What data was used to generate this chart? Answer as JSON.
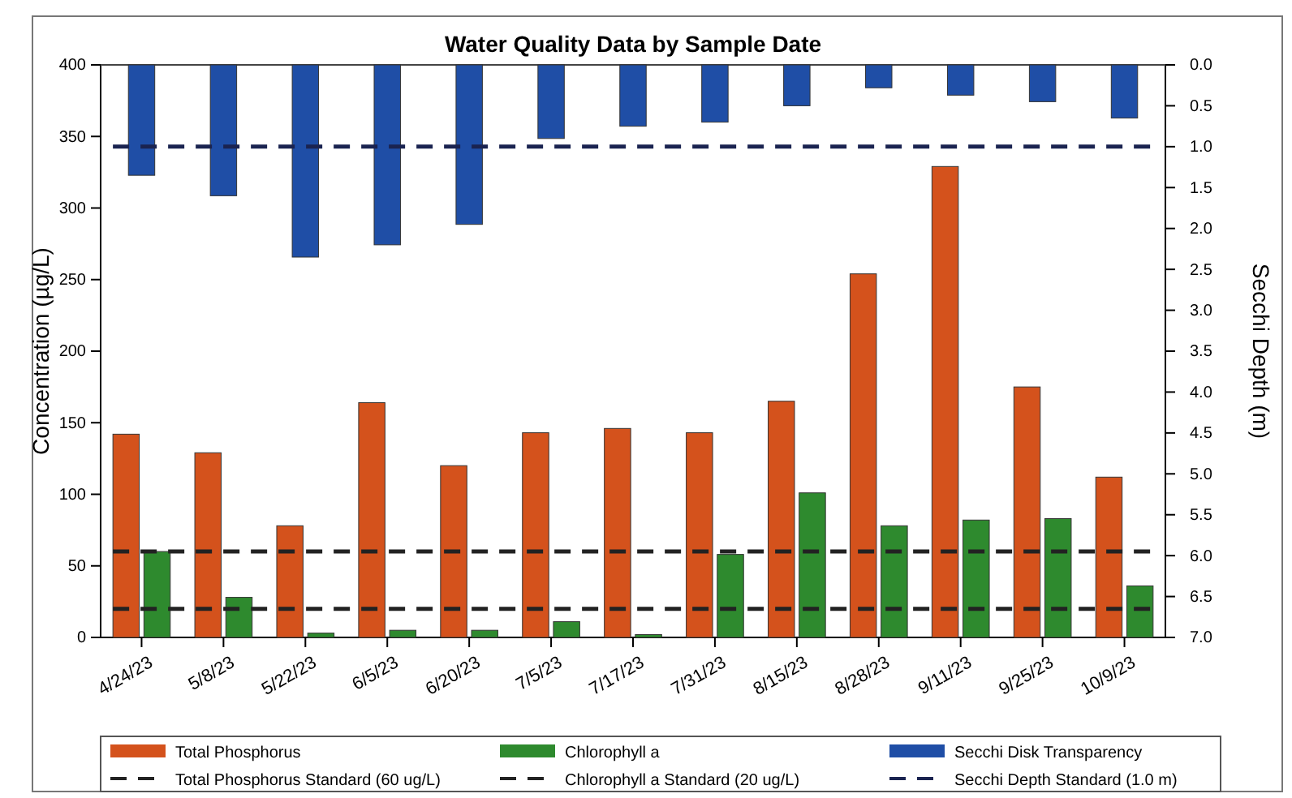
{
  "chart_data": {
    "type": "bar",
    "title": "Water Quality Data by Sample Date",
    "categories": [
      "4/24/23",
      "5/8/23",
      "5/22/23",
      "6/5/23",
      "6/20/23",
      "7/5/23",
      "7/17/23",
      "7/31/23",
      "8/15/23",
      "8/28/23",
      "9/11/23",
      "9/25/23",
      "10/9/23"
    ],
    "series": [
      {
        "name": "Total Phosphorus",
        "color": "#d4521c",
        "values": [
          142,
          129,
          78,
          164,
          120,
          143,
          146,
          143,
          165,
          254,
          329,
          175,
          112
        ]
      },
      {
        "name": "Chlorophyll a",
        "color": "#2e8a2e",
        "values": [
          60,
          28,
          3,
          5,
          5,
          11,
          2,
          58,
          101,
          78,
          82,
          83,
          36
        ]
      },
      {
        "name": "Secchi Disk Transparency",
        "color": "#1f4ea6",
        "axis": "y2",
        "values": [
          1.35,
          1.6,
          2.35,
          2.2,
          1.95,
          0.9,
          0.75,
          0.7,
          0.5,
          0.28,
          0.37,
          0.45,
          0.65
        ]
      }
    ],
    "ylabel": "Concentration (µg/L)",
    "y2label": "Secchi Depth (m)",
    "ylim": [
      0,
      400
    ],
    "yticks": [
      0,
      50,
      100,
      150,
      200,
      250,
      300,
      350,
      400
    ],
    "y2lim": [
      7,
      0
    ],
    "y2ticks": [
      {
        "value": 0,
        "label": "0.0"
      },
      {
        "value": 0.5,
        "label": "0.5"
      },
      {
        "value": 1,
        "label": "1.0"
      },
      {
        "value": 1.5,
        "label": "1.5"
      },
      {
        "value": 2,
        "label": "2.0"
      },
      {
        "value": 2.5,
        "label": "2.5"
      },
      {
        "value": 3,
        "label": "3.0"
      },
      {
        "value": 3.5,
        "label": "3.5"
      },
      {
        "value": 4,
        "label": "4.0"
      },
      {
        "value": 4.5,
        "label": "4.5"
      },
      {
        "value": 5,
        "label": "5.0"
      },
      {
        "value": 5.5,
        "label": "5.5"
      },
      {
        "value": 6,
        "label": "6.0"
      },
      {
        "value": 6.5,
        "label": "6.5"
      },
      {
        "value": 7,
        "label": "7.0"
      }
    ],
    "ref_lines": [
      {
        "axis": "y",
        "value": 60,
        "label": "Total Phosphorus Standard (60 ug/L)",
        "color": "#222222",
        "line_style": "dashed"
      },
      {
        "axis": "y",
        "value": 20,
        "label": "Chlorophyll a Standard (20 ug/L)",
        "color": "#222222",
        "line_style": "dashed"
      },
      {
        "axis": "y2",
        "value": 1,
        "label": "Secchi Depth Standard (1.0 m)",
        "color": "#1a2350",
        "line_style": "dashed"
      }
    ],
    "legend": "bottom",
    "grid": false
  }
}
